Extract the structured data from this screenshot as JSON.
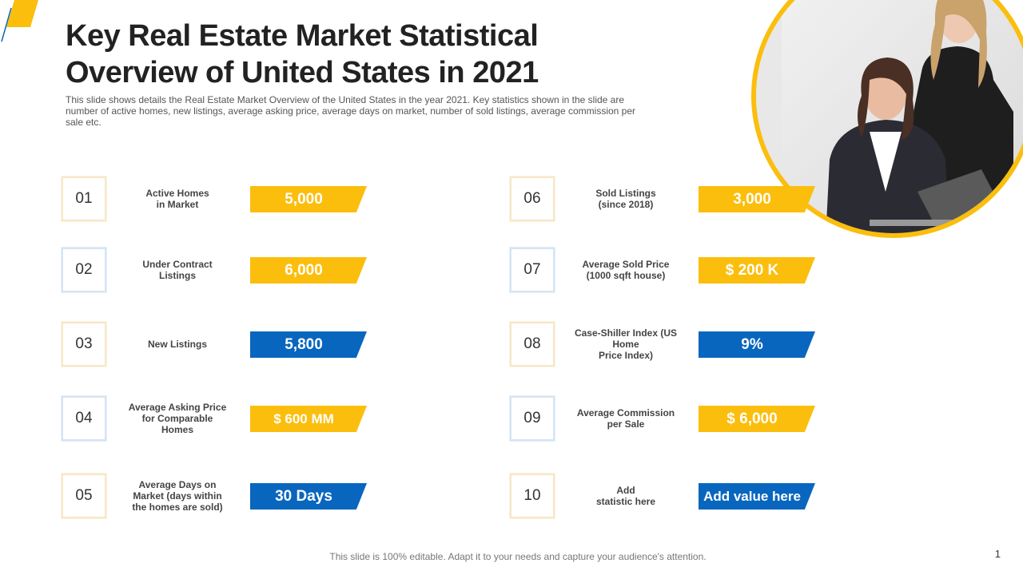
{
  "title": "Key Real Estate Market Statistical Overview of United States in 2021",
  "subtitle": "This slide shows details the Real Estate Market Overview  of the United States in the year 2021. Key statistics shown in the slide are number of active homes, new listings, average  asking price, average  days on market, number of sold listings, average  commission per sale etc.",
  "colors": {
    "yellow": "#fbbe0d",
    "blue": "#0866bf"
  },
  "stats": [
    {
      "num": "01",
      "label": "Active Homes\nin Market",
      "value": "5,000",
      "color": "yellow"
    },
    {
      "num": "02",
      "label": "Under Contract\nListings",
      "value": "6,000",
      "color": "yellow"
    },
    {
      "num": "03",
      "label": "New Listings",
      "value": "5,800",
      "color": "blue"
    },
    {
      "num": "04",
      "label": "Average Asking Price\nfor Comparable\nHomes",
      "value": "$ 600 MM",
      "color": "yellow"
    },
    {
      "num": "05",
      "label": "Average Days on\nMarket (days within\nthe homes are sold)",
      "value": "30 Days",
      "color": "blue"
    },
    {
      "num": "06",
      "label": "Sold Listings\n(since 2018)",
      "value": "3,000",
      "color": "yellow"
    },
    {
      "num": "07",
      "label": "Average Sold Price\n(1000 sqft house)",
      "value": "$ 200 K",
      "color": "yellow"
    },
    {
      "num": "08",
      "label": "Case-Shiller Index (US\nHome\nPrice Index)",
      "value": "9%",
      "color": "blue"
    },
    {
      "num": "09",
      "label": "Average Commission\nper Sale",
      "value": "$ 6,000",
      "color": "yellow"
    },
    {
      "num": "10",
      "label": "Add\nstatistic here",
      "value": "Add value here",
      "color": "blue"
    }
  ],
  "footer": "This slide is 100% editable. Adapt it to your needs and capture your audience's attention.",
  "page_number": "1"
}
